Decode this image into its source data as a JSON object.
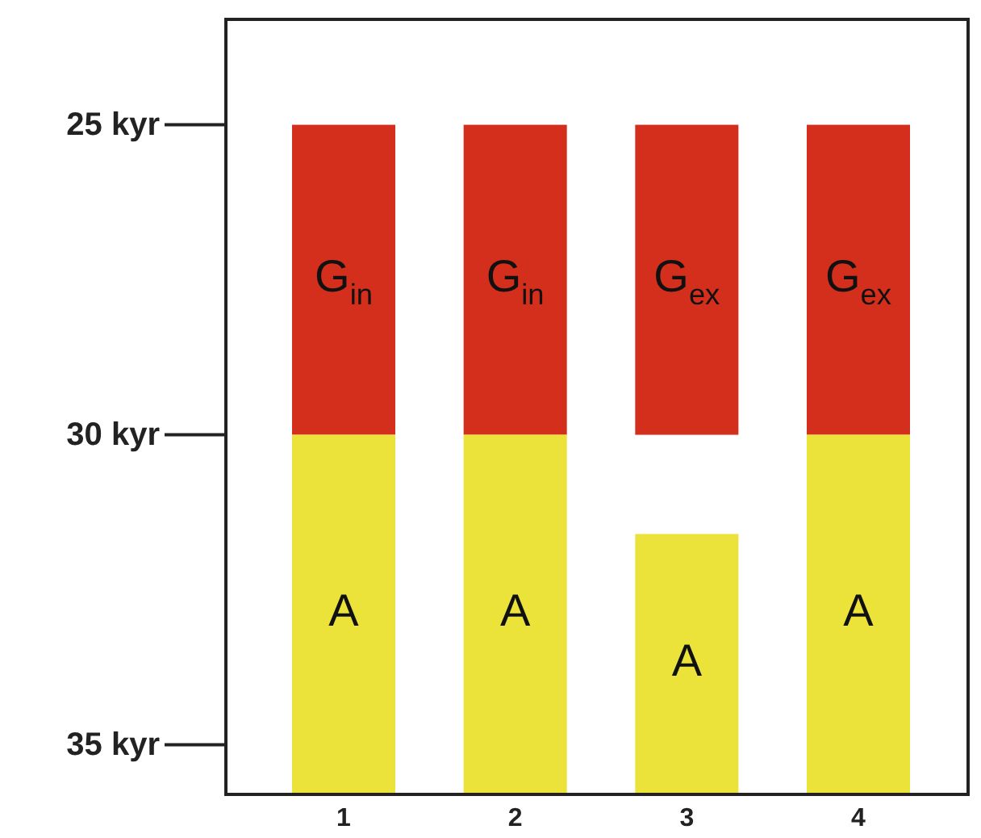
{
  "chart_data": {
    "type": "bar",
    "categories": [
      "1",
      "2",
      "3",
      "4"
    ],
    "ylim": [
      35.8,
      23.3
    ],
    "yticks": [
      {
        "value": 25,
        "label": "25 kyr"
      },
      {
        "value": 30,
        "label": "30 kyr"
      },
      {
        "value": 35,
        "label": "35 kyr"
      }
    ],
    "series": [
      {
        "color": "#d42e1c",
        "base": [
          25,
          25,
          25,
          25
        ],
        "values": [
          5,
          5,
          5,
          5
        ],
        "value_labels": [
          "G$_{in}$",
          "G$_{in}$",
          "G$_{ex}$",
          "G$_{ex}$"
        ]
      },
      {
        "color": "#ece33a",
        "base": [
          30,
          30,
          31.6,
          30
        ],
        "values": [
          5.8,
          5.8,
          4.2,
          5.8
        ],
        "value_labels": [
          "A",
          "A",
          "A",
          "A"
        ]
      }
    ]
  }
}
